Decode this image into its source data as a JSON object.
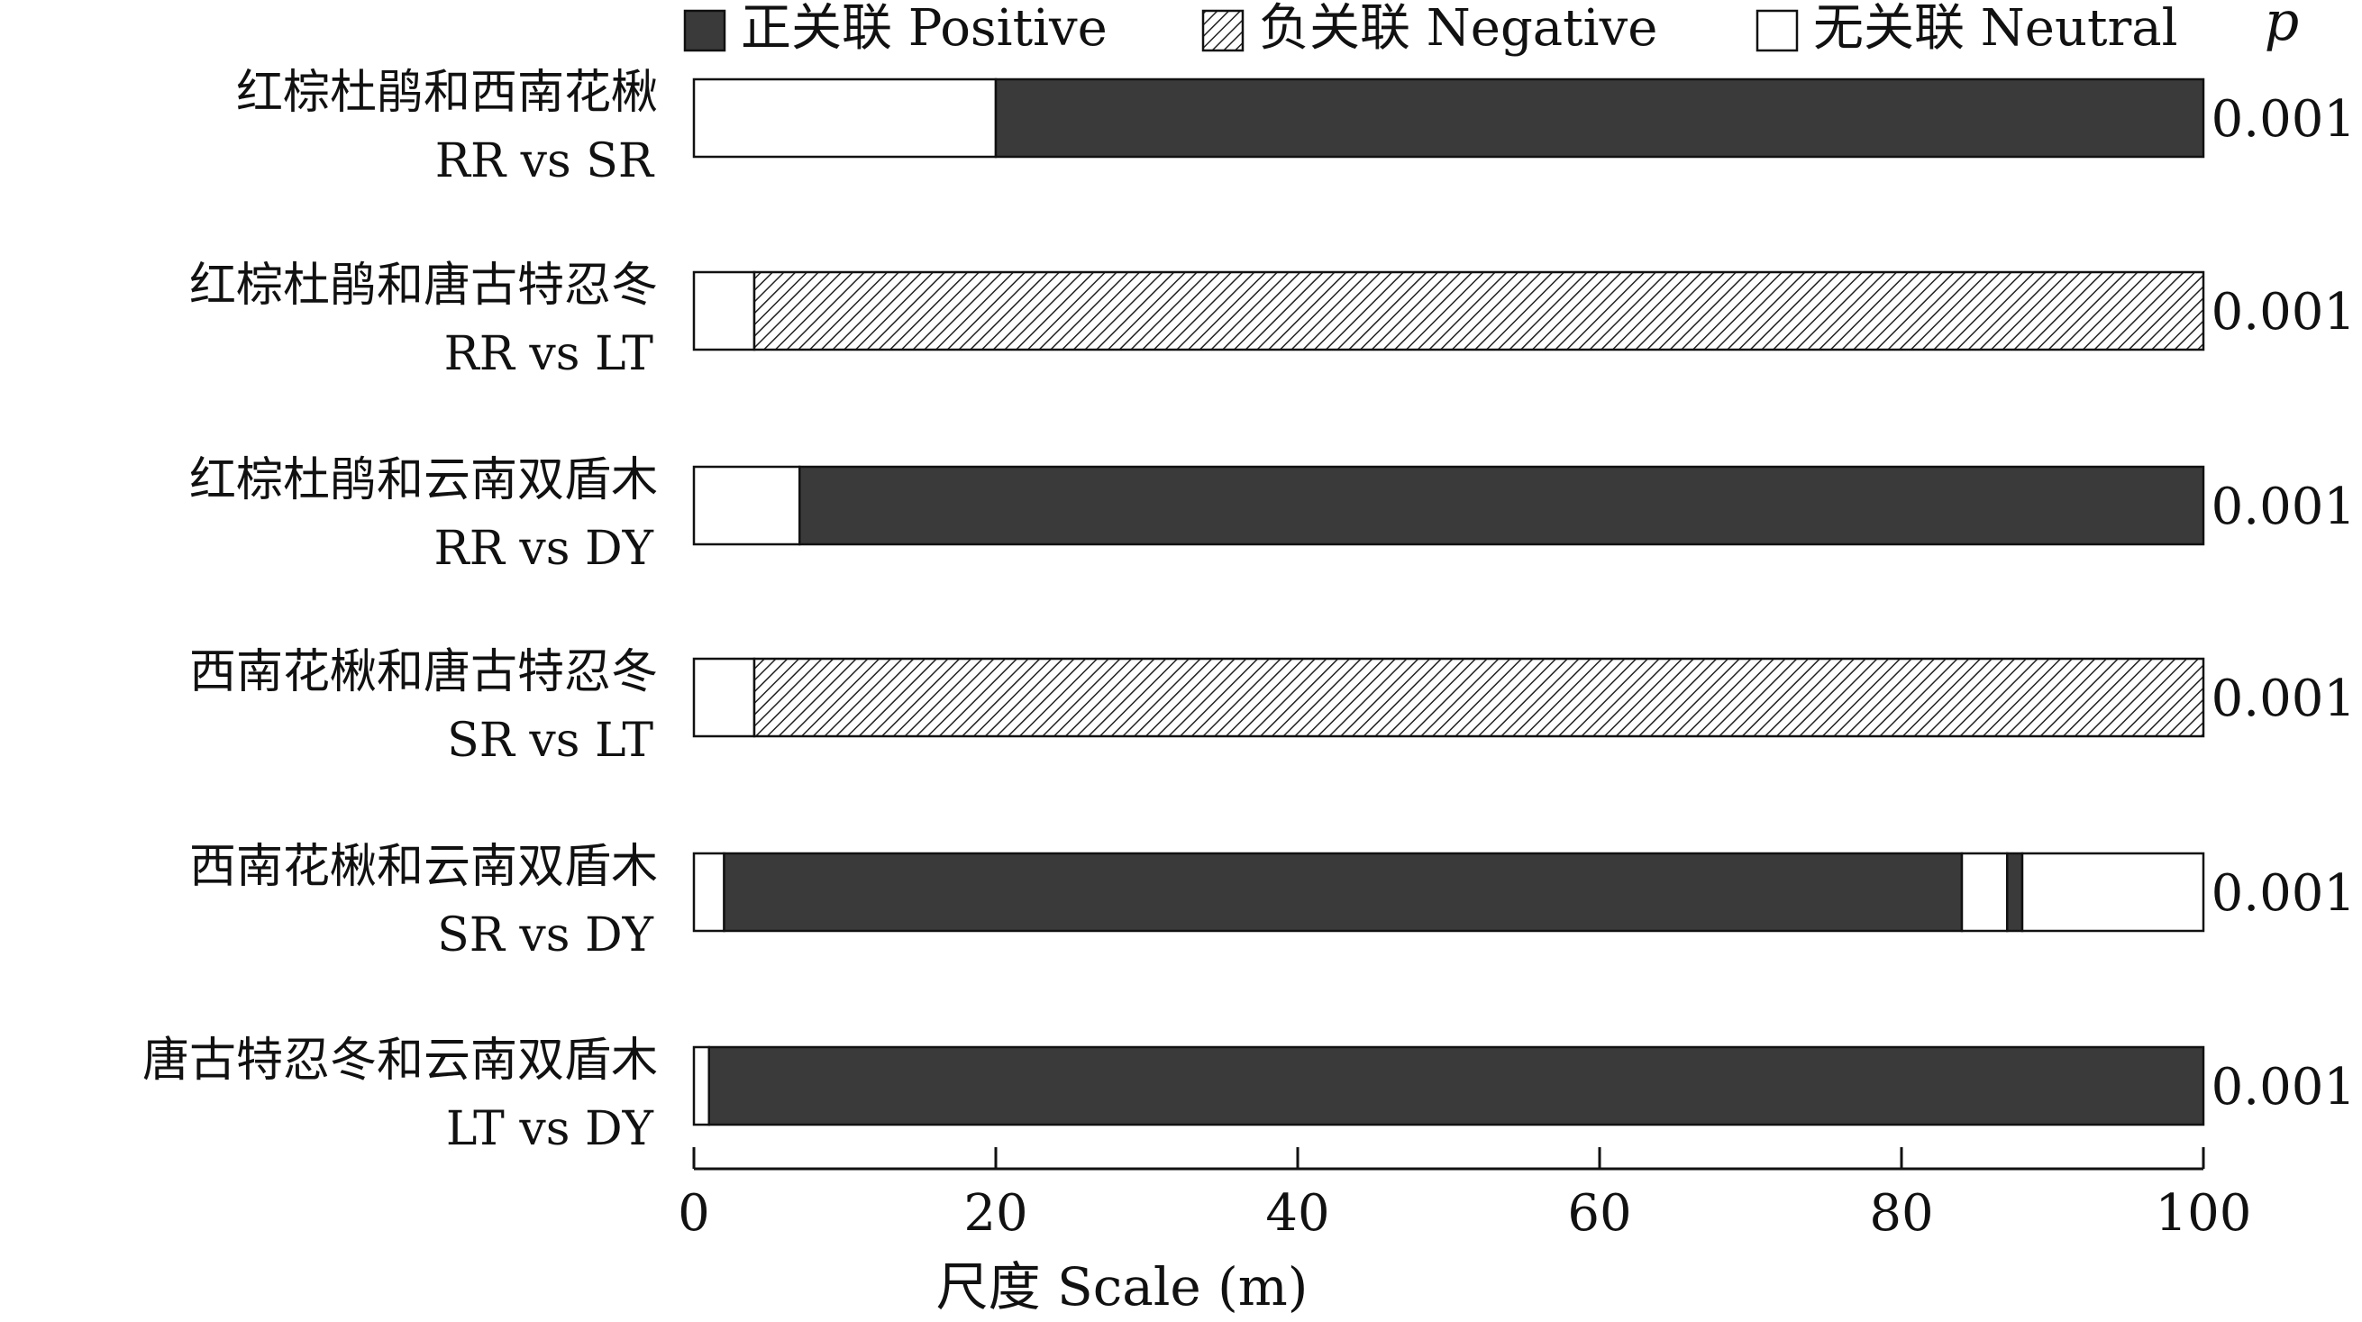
{
  "chart_data": {
    "type": "bar",
    "orientation": "horizontal",
    "stacked": true,
    "xlabel": "尺度 Scale (m)",
    "xlim": [
      0,
      100
    ],
    "xticks": [
      0,
      20,
      40,
      60,
      80,
      100
    ],
    "p_header": "p",
    "legend_position": "top",
    "legend": [
      {
        "key": "positive",
        "label": "正关联 Positive",
        "color": "#3a3a3a",
        "pattern": "solid"
      },
      {
        "key": "negative",
        "label": "负关联 Negative",
        "color": "#ffffff",
        "pattern": "hatched"
      },
      {
        "key": "neutral",
        "label": "无关联 Neutral",
        "color": "#ffffff",
        "pattern": "none"
      }
    ],
    "rows": [
      {
        "label_cn": "红棕杜鹃和西南花楸",
        "label_en": "RR vs SR",
        "p": "0.001",
        "segments": [
          {
            "type": "neutral",
            "from": 0,
            "to": 20
          },
          {
            "type": "positive",
            "from": 20,
            "to": 100
          }
        ]
      },
      {
        "label_cn": "红棕杜鹃和唐古特忍冬",
        "label_en": "RR vs LT",
        "p": "0.001",
        "segments": [
          {
            "type": "neutral",
            "from": 0,
            "to": 4
          },
          {
            "type": "negative",
            "from": 4,
            "to": 100
          }
        ]
      },
      {
        "label_cn": "红棕杜鹃和云南双盾木",
        "label_en": "RR vs DY",
        "p": "0.001",
        "segments": [
          {
            "type": "neutral",
            "from": 0,
            "to": 7
          },
          {
            "type": "positive",
            "from": 7,
            "to": 100
          }
        ]
      },
      {
        "label_cn": "西南花楸和唐古特忍冬",
        "label_en": "SR vs LT",
        "p": "0.001",
        "segments": [
          {
            "type": "neutral",
            "from": 0,
            "to": 4
          },
          {
            "type": "negative",
            "from": 4,
            "to": 100
          }
        ]
      },
      {
        "label_cn": "西南花楸和云南双盾木",
        "label_en": "SR vs DY",
        "p": "0.001",
        "segments": [
          {
            "type": "neutral",
            "from": 0,
            "to": 2
          },
          {
            "type": "positive",
            "from": 2,
            "to": 84
          },
          {
            "type": "neutral",
            "from": 84,
            "to": 87
          },
          {
            "type": "positive",
            "from": 87,
            "to": 88
          },
          {
            "type": "neutral",
            "from": 88,
            "to": 100
          }
        ]
      },
      {
        "label_cn": "唐古特忍冬和云南双盾木",
        "label_en": "LT vs DY",
        "p": "0.001",
        "segments": [
          {
            "type": "neutral",
            "from": 0,
            "to": 1
          },
          {
            "type": "positive",
            "from": 1,
            "to": 100
          }
        ]
      }
    ]
  }
}
